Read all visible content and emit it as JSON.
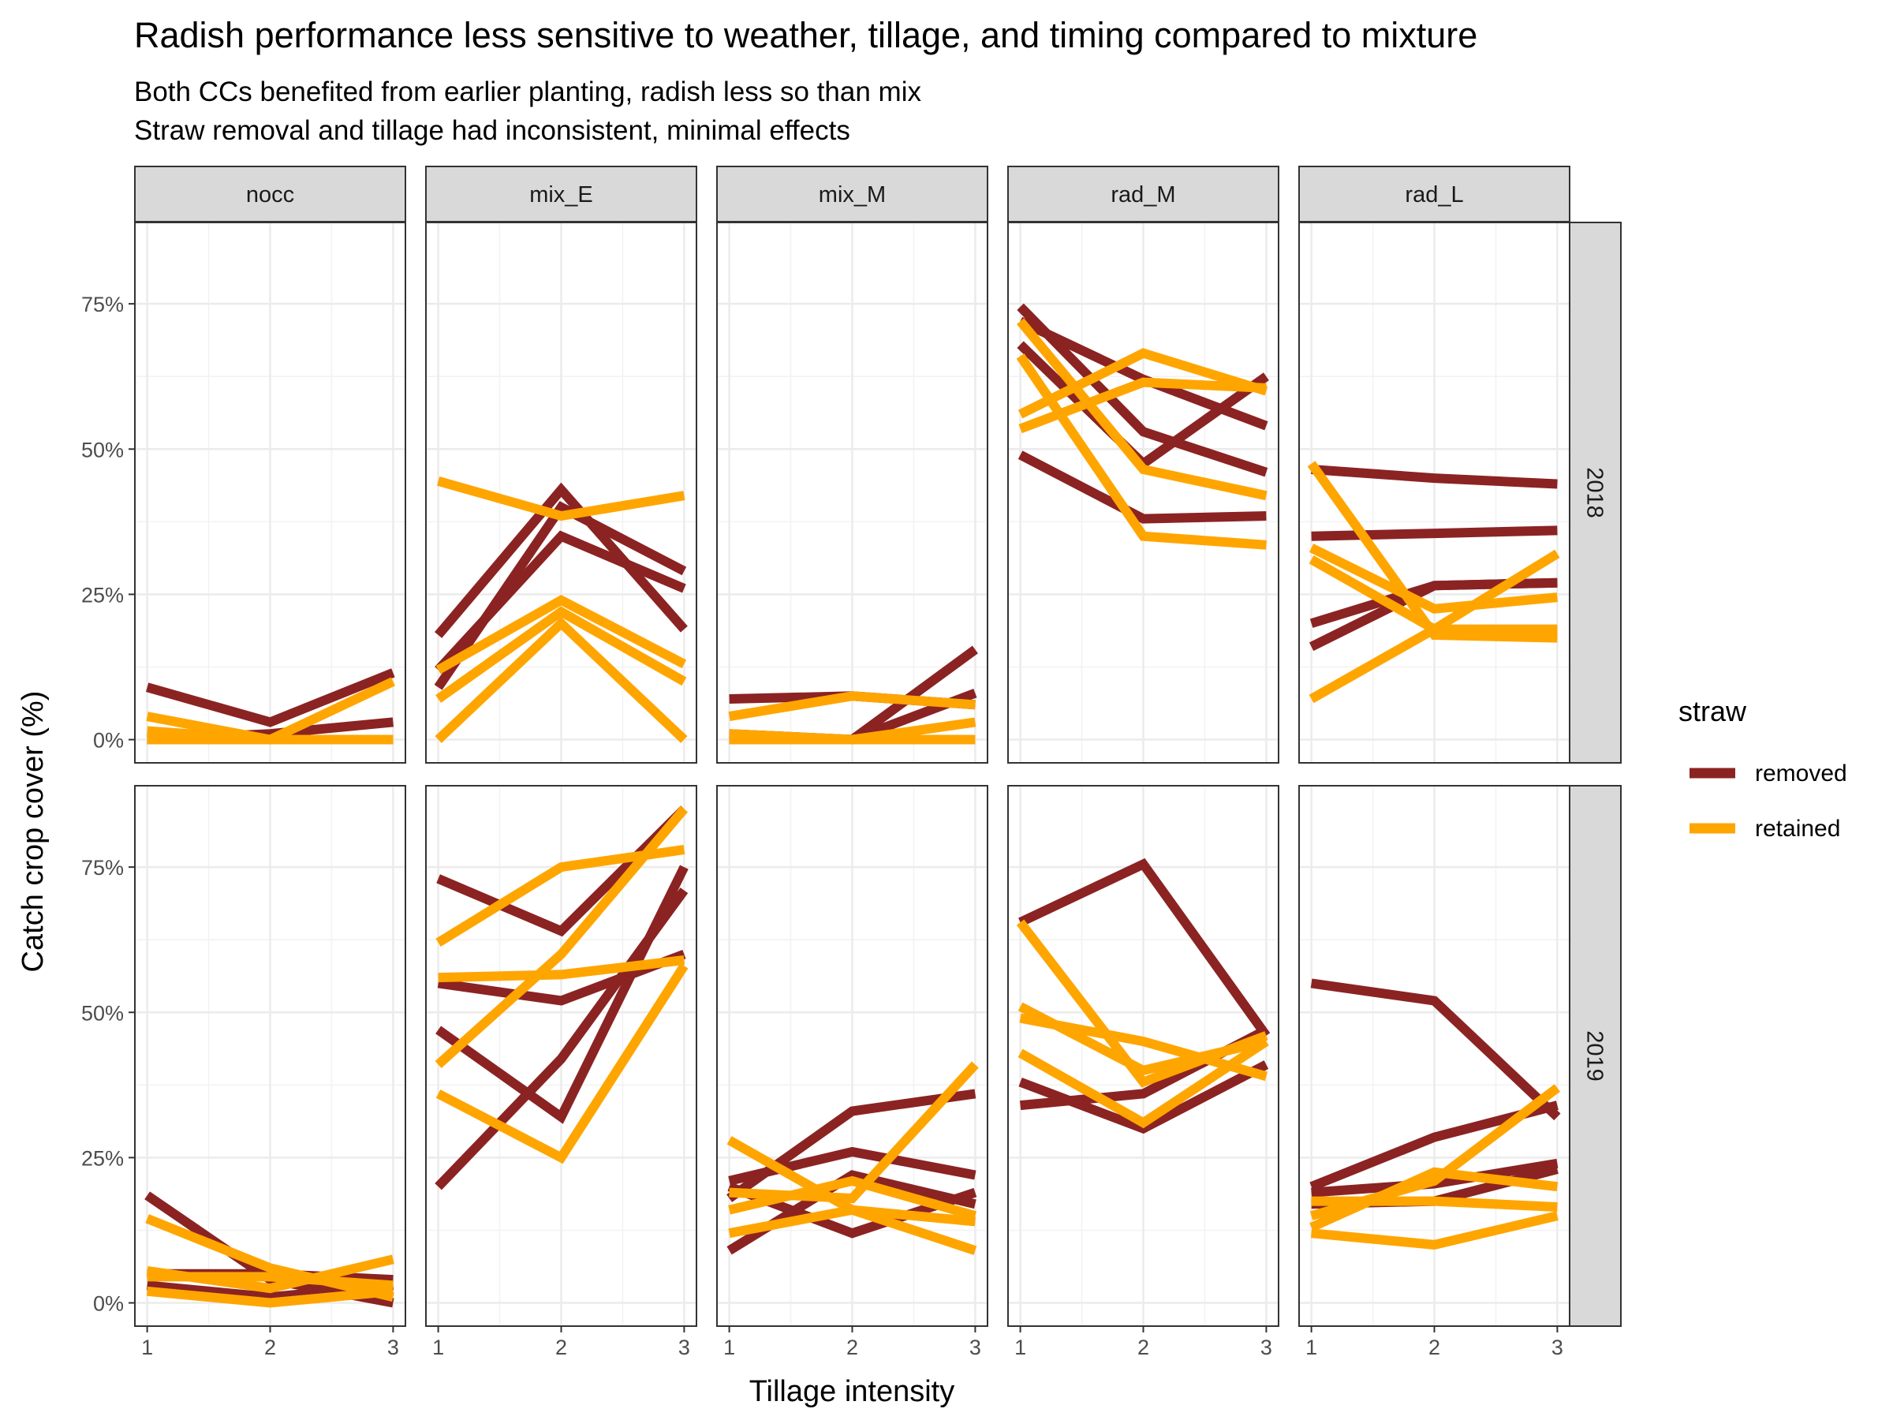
{
  "chart_data": {
    "type": "line",
    "title": "Radish performance less sensitive to weather, tillage, and timing compared to mixture",
    "subtitle_lines": [
      "Both CCs benefited from earlier planting, radish less so than mix",
      "Straw removal and tillage had inconsistent, minimal effects"
    ],
    "xlabel": "Tillage intensity",
    "ylabel": "Catch crop cover (%)",
    "x_ticks": [
      "1",
      "2",
      "3"
    ],
    "y_ticks": [
      "0%",
      "25%",
      "50%",
      "75%"
    ],
    "ylim": [
      -0.04,
      0.89
    ],
    "grid": true,
    "legend": {
      "title": "straw",
      "position": "right",
      "entries": [
        {
          "name": "removed",
          "color": "#8B2323"
        },
        {
          "name": "retained",
          "color": "#FFA500"
        }
      ]
    },
    "columns": [
      "nocc",
      "mix_E",
      "mix_M",
      "rad_M",
      "rad_L"
    ],
    "rows": [
      "2018",
      "2019"
    ],
    "panels": [
      {
        "row": "2018",
        "col": "nocc",
        "series": [
          {
            "straw": "removed",
            "values": [
              0.09,
              0.03,
              0.115
            ]
          },
          {
            "straw": "removed",
            "values": [
              0.0,
              0.01,
              0.03
            ]
          },
          {
            "straw": "removed",
            "values": [
              0.0,
              0.0,
              0.0
            ]
          },
          {
            "straw": "retained",
            "values": [
              0.04,
              0.0,
              0.1
            ]
          },
          {
            "straw": "retained",
            "values": [
              0.015,
              0.0,
              0.0
            ]
          },
          {
            "straw": "retained",
            "values": [
              0.0,
              0.0,
              0.0
            ]
          }
        ]
      },
      {
        "row": "2018",
        "col": "mix_E",
        "series": [
          {
            "straw": "removed",
            "values": [
              0.18,
              0.43,
              0.19
            ]
          },
          {
            "straw": "removed",
            "values": [
              0.09,
              0.4,
              0.29
            ]
          },
          {
            "straw": "removed",
            "values": [
              0.12,
              0.35,
              0.26
            ]
          },
          {
            "straw": "retained",
            "values": [
              0.445,
              0.385,
              0.42
            ]
          },
          {
            "straw": "retained",
            "values": [
              0.12,
              0.24,
              0.13
            ]
          },
          {
            "straw": "retained",
            "values": [
              0.07,
              0.22,
              0.1
            ]
          },
          {
            "straw": "retained",
            "values": [
              0.0,
              0.2,
              0.0
            ]
          }
        ]
      },
      {
        "row": "2018",
        "col": "mix_M",
        "series": [
          {
            "straw": "removed",
            "values": [
              0.07,
              0.075,
              0.06
            ]
          },
          {
            "straw": "removed",
            "values": [
              0.01,
              0.0,
              0.155
            ]
          },
          {
            "straw": "removed",
            "values": [
              0.0,
              0.0,
              0.08
            ]
          },
          {
            "straw": "retained",
            "values": [
              0.04,
              0.075,
              0.06
            ]
          },
          {
            "straw": "retained",
            "values": [
              0.01,
              0.0,
              0.03
            ]
          },
          {
            "straw": "retained",
            "values": [
              0.0,
              0.0,
              0.0
            ]
          }
        ]
      },
      {
        "row": "2018",
        "col": "rad_M",
        "series": [
          {
            "straw": "removed",
            "values": [
              0.745,
              0.53,
              0.46
            ]
          },
          {
            "straw": "removed",
            "values": [
              0.72,
              0.62,
              0.54
            ]
          },
          {
            "straw": "removed",
            "values": [
              0.68,
              0.475,
              0.625
            ]
          },
          {
            "straw": "removed",
            "values": [
              0.49,
              0.38,
              0.385
            ]
          },
          {
            "straw": "retained",
            "values": [
              0.72,
              0.465,
              0.42
            ]
          },
          {
            "straw": "retained",
            "values": [
              0.66,
              0.35,
              0.335
            ]
          },
          {
            "straw": "retained",
            "values": [
              0.56,
              0.665,
              0.6
            ]
          },
          {
            "straw": "retained",
            "values": [
              0.535,
              0.615,
              0.605
            ]
          }
        ]
      },
      {
        "row": "2018",
        "col": "rad_L",
        "series": [
          {
            "straw": "removed",
            "values": [
              0.465,
              0.45,
              0.44
            ]
          },
          {
            "straw": "removed",
            "values": [
              0.35,
              0.355,
              0.36
            ]
          },
          {
            "straw": "removed",
            "values": [
              0.2,
              0.265,
              0.27
            ]
          },
          {
            "straw": "removed",
            "values": [
              0.16,
              0.265,
              0.27
            ]
          },
          {
            "straw": "retained",
            "values": [
              0.475,
              0.18,
              0.175
            ]
          },
          {
            "straw": "retained",
            "values": [
              0.33,
              0.225,
              0.245
            ]
          },
          {
            "straw": "retained",
            "values": [
              0.31,
              0.19,
              0.19
            ]
          },
          {
            "straw": "retained",
            "values": [
              0.07,
              0.19,
              0.32
            ]
          }
        ]
      },
      {
        "row": "2019",
        "col": "nocc",
        "series": [
          {
            "straw": "removed",
            "values": [
              0.185,
              0.04,
              0.0
            ]
          },
          {
            "straw": "removed",
            "values": [
              0.05,
              0.05,
              0.04
            ]
          },
          {
            "straw": "removed",
            "values": [
              0.03,
              0.01,
              0.03
            ]
          },
          {
            "straw": "retained",
            "values": [
              0.145,
              0.06,
              0.01
            ]
          },
          {
            "straw": "retained",
            "values": [
              0.055,
              0.025,
              0.075
            ]
          },
          {
            "straw": "retained",
            "values": [
              0.045,
              0.045,
              0.03
            ]
          },
          {
            "straw": "retained",
            "values": [
              0.02,
              0.0,
              0.02
            ]
          }
        ]
      },
      {
        "row": "2019",
        "col": "mix_E",
        "series": [
          {
            "straw": "removed",
            "values": [
              0.73,
              0.64,
              0.85
            ]
          },
          {
            "straw": "removed",
            "values": [
              0.55,
              0.52,
              0.6
            ]
          },
          {
            "straw": "removed",
            "values": [
              0.47,
              0.32,
              0.75
            ]
          },
          {
            "straw": "removed",
            "values": [
              0.2,
              0.42,
              0.71
            ]
          },
          {
            "straw": "retained",
            "values": [
              0.62,
              0.75,
              0.78
            ]
          },
          {
            "straw": "retained",
            "values": [
              0.56,
              0.565,
              0.59
            ]
          },
          {
            "straw": "retained",
            "values": [
              0.41,
              0.6,
              0.85
            ]
          },
          {
            "straw": "retained",
            "values": [
              0.36,
              0.25,
              0.58
            ]
          }
        ]
      },
      {
        "row": "2019",
        "col": "mix_M",
        "series": [
          {
            "straw": "removed",
            "values": [
              0.18,
              0.33,
              0.36
            ]
          },
          {
            "straw": "removed",
            "values": [
              0.21,
              0.26,
              0.22
            ]
          },
          {
            "straw": "removed",
            "values": [
              0.2,
              0.12,
              0.19
            ]
          },
          {
            "straw": "removed",
            "values": [
              0.09,
              0.22,
              0.17
            ]
          },
          {
            "straw": "retained",
            "values": [
              0.28,
              0.16,
              0.09
            ]
          },
          {
            "straw": "retained",
            "values": [
              0.19,
              0.18,
              0.41
            ]
          },
          {
            "straw": "retained",
            "values": [
              0.16,
              0.21,
              0.15
            ]
          },
          {
            "straw": "retained",
            "values": [
              0.12,
              0.16,
              0.14
            ]
          }
        ]
      },
      {
        "row": "2019",
        "col": "rad_M",
        "series": [
          {
            "straw": "removed",
            "values": [
              0.655,
              0.755,
              0.46
            ]
          },
          {
            "straw": "removed",
            "values": [
              0.38,
              0.3,
              0.41
            ]
          },
          {
            "straw": "removed",
            "values": [
              0.34,
              0.36,
              0.47
            ]
          },
          {
            "straw": "retained",
            "values": [
              0.655,
              0.38,
              0.46
            ]
          },
          {
            "straw": "retained",
            "values": [
              0.51,
              0.4,
              0.45
            ]
          },
          {
            "straw": "retained",
            "values": [
              0.49,
              0.45,
              0.39
            ]
          },
          {
            "straw": "retained",
            "values": [
              0.43,
              0.31,
              0.45
            ]
          }
        ]
      },
      {
        "row": "2019",
        "col": "rad_L",
        "series": [
          {
            "straw": "removed",
            "values": [
              0.55,
              0.52,
              0.32
            ]
          },
          {
            "straw": "removed",
            "values": [
              0.2,
              0.285,
              0.34
            ]
          },
          {
            "straw": "removed",
            "values": [
              0.19,
              0.205,
              0.24
            ]
          },
          {
            "straw": "removed",
            "values": [
              0.17,
              0.175,
              0.23
            ]
          },
          {
            "straw": "retained",
            "values": [
              0.13,
              0.225,
              0.2
            ]
          },
          {
            "straw": "retained",
            "values": [
              0.15,
              0.21,
              0.37
            ]
          },
          {
            "straw": "retained",
            "values": [
              0.175,
              0.175,
              0.165
            ]
          },
          {
            "straw": "retained",
            "values": [
              0.12,
              0.1,
              0.15
            ]
          }
        ]
      }
    ]
  }
}
